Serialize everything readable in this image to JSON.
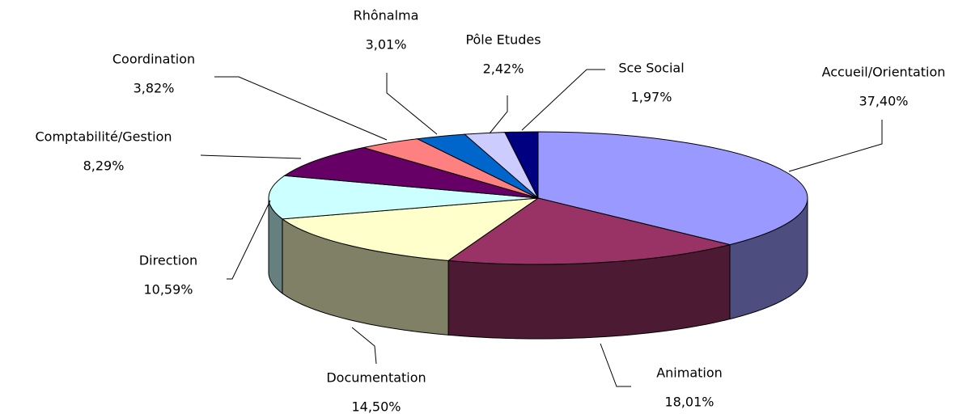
{
  "chart_data": {
    "type": "pie",
    "categories": [
      "Accueil/Orientation",
      "Animation",
      "Documentation",
      "Direction",
      "Comptabilité/Gestion",
      "Coordination",
      "Rhônalma",
      "Pôle Etudes",
      "Sce Social"
    ],
    "values": [
      37.4,
      18.01,
      14.5,
      10.59,
      8.29,
      3.82,
      3.01,
      2.42,
      1.97
    ],
    "value_labels": [
      "37,40%",
      "18,01%",
      "14,50%",
      "10,59%",
      "8,29%",
      "3,82%",
      "3,01%",
      "2,42%",
      "1,97%"
    ],
    "colors": [
      "#9999ff",
      "#993366",
      "#ffffcc",
      "#ccffff",
      "#660066",
      "#ff8080",
      "#0066cc",
      "#ccccff",
      "#000080"
    ]
  }
}
